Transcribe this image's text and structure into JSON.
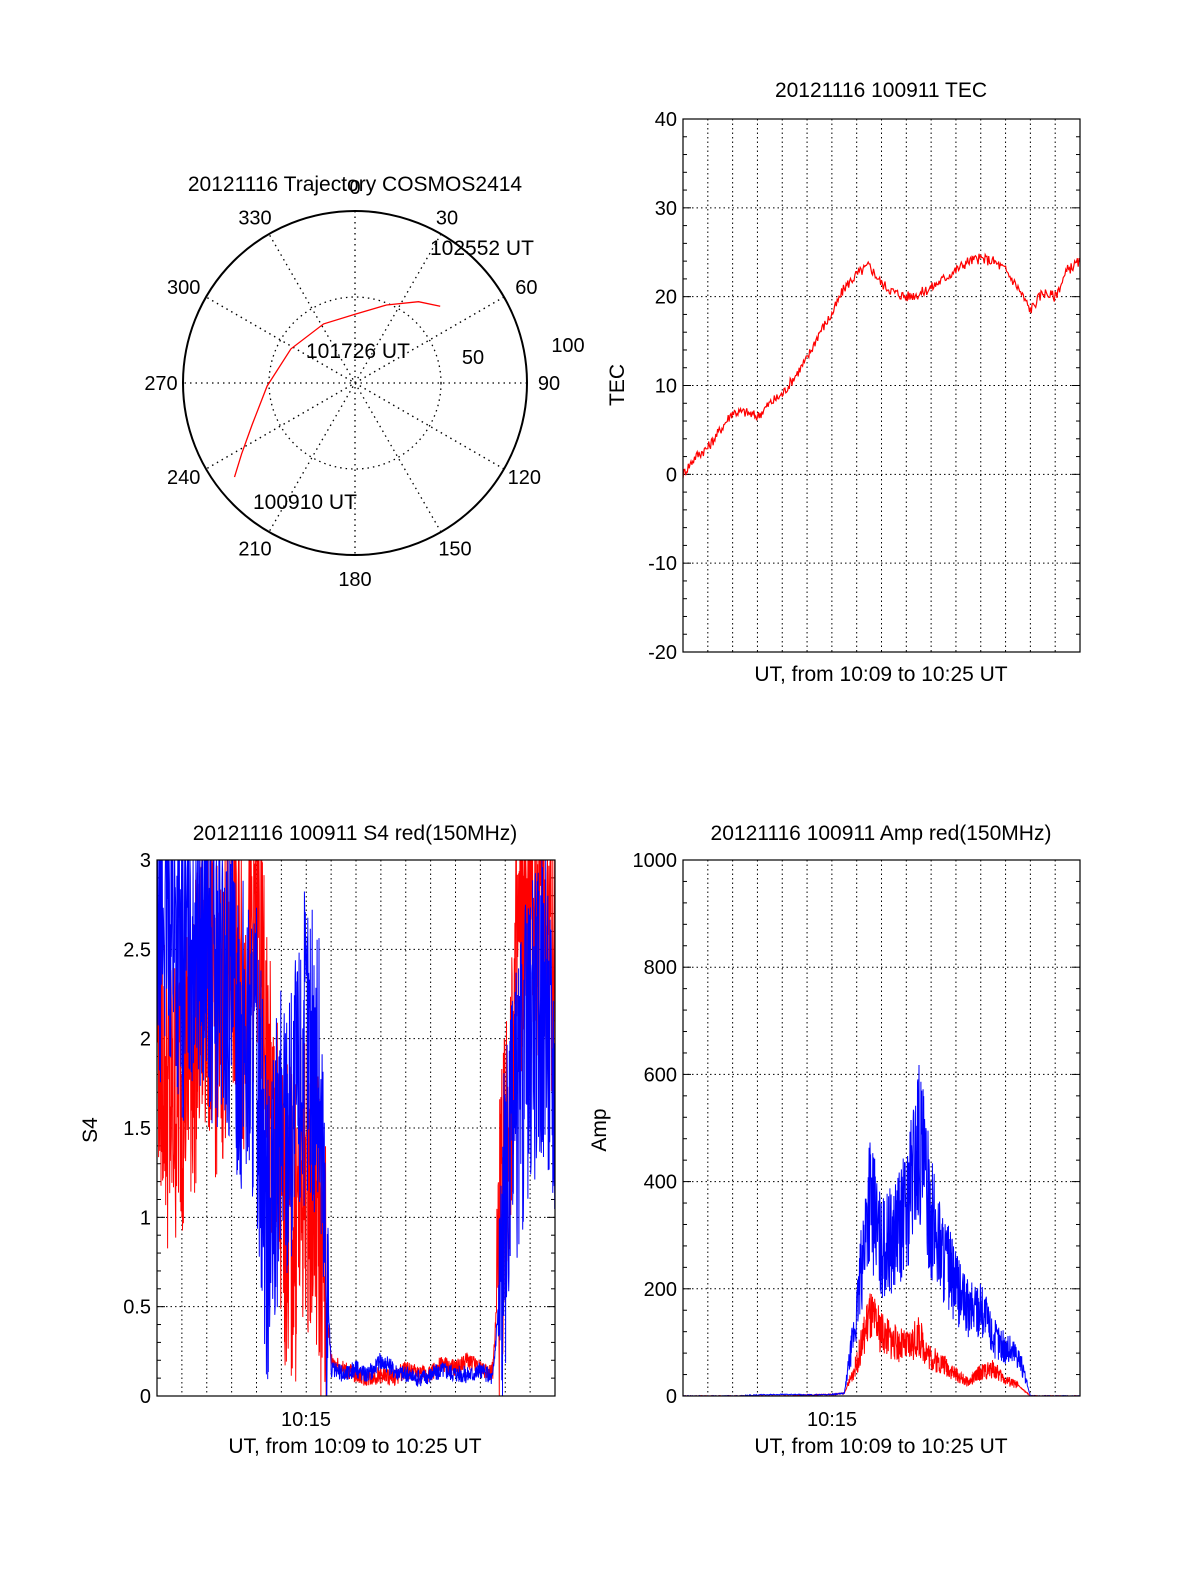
{
  "colors": {
    "red": "#ff0000",
    "blue": "#0000ff",
    "axis": "#000000",
    "grid": "#000000"
  },
  "chart_data": [
    {
      "id": "trajectory",
      "type": "polar",
      "title": "20121116 Trajectory COSMOS2414",
      "angle_labels": [
        "0",
        "30",
        "60",
        "90",
        "120",
        "150",
        "180",
        "210",
        "240",
        "270",
        "300",
        "330"
      ],
      "radial_labels": [
        "50",
        "100"
      ],
      "radial_max": 100,
      "radial_rings": [
        50
      ],
      "time_labels": [
        "102552 UT",
        "101726 UT",
        "100910 UT"
      ],
      "path": [
        {
          "az": 232,
          "el": 10
        },
        {
          "az": 238,
          "el": 20
        },
        {
          "az": 248,
          "el": 32
        },
        {
          "az": 268,
          "el": 44
        },
        {
          "az": 298,
          "el": 52
        },
        {
          "az": 332,
          "el": 55
        },
        {
          "az": 0,
          "el": 54
        },
        {
          "az": 22,
          "el": 46
        },
        {
          "az": 38,
          "el": 36
        },
        {
          "az": 48,
          "el": 30
        }
      ],
      "line_color": "#ff0000"
    },
    {
      "id": "tec",
      "type": "line",
      "title": "20121116 100911 TEC",
      "ylabel": "TEC",
      "xlabel": "UT, from 10:09 to 10:25 UT",
      "ylim": [
        -20,
        40
      ],
      "yticks": [
        "-20",
        "-10",
        "0",
        "10",
        "20",
        "30",
        "40"
      ],
      "xticks": [],
      "grid": true,
      "xlim": [
        0,
        16
      ],
      "series": [
        {
          "color": "#ff0000",
          "x": [
            0,
            0.5,
            1,
            1.5,
            2,
            2.5,
            3,
            3.5,
            4,
            4.5,
            5,
            5.5,
            6,
            6.5,
            7,
            7.5,
            8,
            8.5,
            9,
            9.5,
            10,
            10.5,
            11,
            11.5,
            12,
            12.5,
            13,
            13.5,
            14,
            14.5,
            15,
            15.5,
            16
          ],
          "y": [
            0,
            2,
            3,
            5,
            7,
            7,
            6.5,
            8,
            9,
            11,
            13,
            16,
            18,
            21,
            22.5,
            23.5,
            21.5,
            20.5,
            20,
            20.3,
            21,
            22,
            23,
            24,
            24.3,
            24,
            23,
            21,
            18.5,
            20.5,
            20,
            23,
            24
          ]
        }
      ]
    },
    {
      "id": "s4",
      "type": "line",
      "title": "20121116 100911 S4 red(150MHz)",
      "ylabel": "S4",
      "xlabel": "UT, from 10:09 to 10:25 UT",
      "ylim": [
        0,
        3
      ],
      "yticks": [
        "0",
        "0.5",
        "1",
        "1.5",
        "2",
        "2.5",
        "3"
      ],
      "xticks": [
        "10:15"
      ],
      "grid": true,
      "xlim": [
        0,
        16
      ],
      "series": [
        {
          "color": "#ff0000",
          "x": [
            0,
            0.5,
            1,
            1.5,
            2,
            2.5,
            3,
            3.5,
            4,
            4.5,
            5,
            5.5,
            6,
            6.5,
            7,
            7.5,
            8,
            8.5,
            9,
            9.5,
            10,
            10.5,
            11,
            11.5,
            12,
            12.5,
            13,
            13.5,
            14,
            14.5,
            15,
            15.5,
            16
          ],
          "y": [
            2.2,
            1.6,
            1.8,
            2.0,
            2.4,
            2.0,
            2.6,
            2.2,
            2.8,
            1.6,
            1.1,
            0.9,
            1.3,
            1.0,
            0.2,
            0.15,
            0.12,
            0.1,
            0.12,
            0.1,
            0.15,
            0.12,
            0.13,
            0.18,
            0.15,
            0.2,
            0.15,
            0.14,
            1.3,
            2.4,
            2.7,
            2.8,
            2.5
          ]
        },
        {
          "color": "#0000ff",
          "x": [
            0,
            0.5,
            1,
            1.5,
            2,
            2.5,
            3,
            3.5,
            4,
            4.5,
            5,
            5.5,
            6,
            6.5,
            7,
            7.5,
            8,
            8.5,
            9,
            9.5,
            10,
            10.5,
            11,
            11.5,
            12,
            12.5,
            13,
            13.5,
            14,
            14.5,
            15,
            15.5,
            16
          ],
          "y": [
            2.6,
            2.8,
            2.4,
            2.7,
            2.5,
            2.3,
            2.2,
            2.0,
            1.9,
            0.8,
            1.5,
            1.6,
            2.0,
            1.8,
            0.15,
            0.12,
            0.15,
            0.12,
            0.2,
            0.15,
            0.12,
            0.1,
            0.12,
            0.15,
            0.13,
            0.12,
            0.14,
            0.1,
            1.0,
            1.6,
            2.0,
            2.2,
            1.8
          ]
        }
      ]
    },
    {
      "id": "amp",
      "type": "line",
      "title": "20121116 100911 Amp red(150MHz)",
      "ylabel": "Amp",
      "xlabel": "UT, from 10:09 to 10:25 UT",
      "ylim": [
        0,
        1000
      ],
      "yticks": [
        "0",
        "200",
        "400",
        "600",
        "800",
        "1000"
      ],
      "xticks": [
        "10:15"
      ],
      "grid": true,
      "xlim": [
        0,
        16
      ],
      "series": [
        {
          "color": "#ff0000",
          "x": [
            0,
            1,
            2,
            3,
            4,
            5,
            6,
            6.5,
            7,
            7.5,
            8,
            8.5,
            9,
            9.5,
            10,
            10.5,
            11,
            11.5,
            12,
            12.5,
            13,
            13.5,
            14,
            15,
            16
          ],
          "y": [
            0,
            0,
            0,
            0,
            0,
            2,
            3,
            5,
            60,
            150,
            120,
            100,
            90,
            110,
            70,
            60,
            40,
            25,
            45,
            50,
            30,
            20,
            0,
            0,
            0
          ]
        },
        {
          "color": "#0000ff",
          "x": [
            0,
            1,
            2,
            3,
            4,
            5,
            6,
            6.5,
            7,
            7.5,
            8,
            8.5,
            9,
            9.5,
            10,
            10.5,
            11,
            11.5,
            12,
            12.5,
            13,
            13.5,
            14,
            15,
            16
          ],
          "y": [
            0,
            0,
            0,
            2,
            3,
            2,
            3,
            5,
            150,
            380,
            270,
            300,
            340,
            480,
            330,
            260,
            200,
            160,
            170,
            110,
            90,
            80,
            0,
            0,
            0
          ]
        }
      ]
    }
  ]
}
